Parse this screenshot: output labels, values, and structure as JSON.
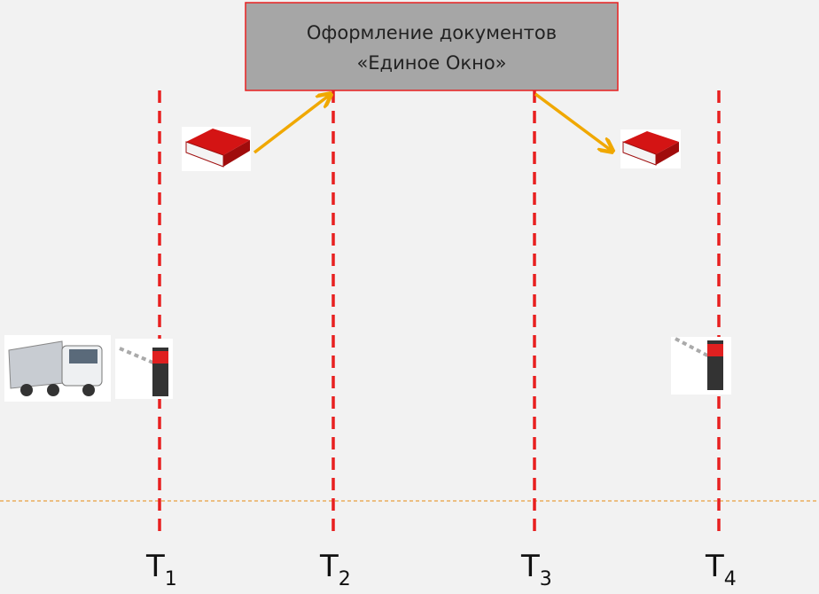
{
  "header": {
    "box_lines": [
      "Оформление документов",
      "«Единое Окно»"
    ]
  },
  "markers": [
    {
      "letter": "T",
      "index": "1"
    },
    {
      "letter": "T",
      "index": "2"
    },
    {
      "letter": "T",
      "index": "3"
    },
    {
      "letter": "T",
      "index": "4"
    }
  ]
}
